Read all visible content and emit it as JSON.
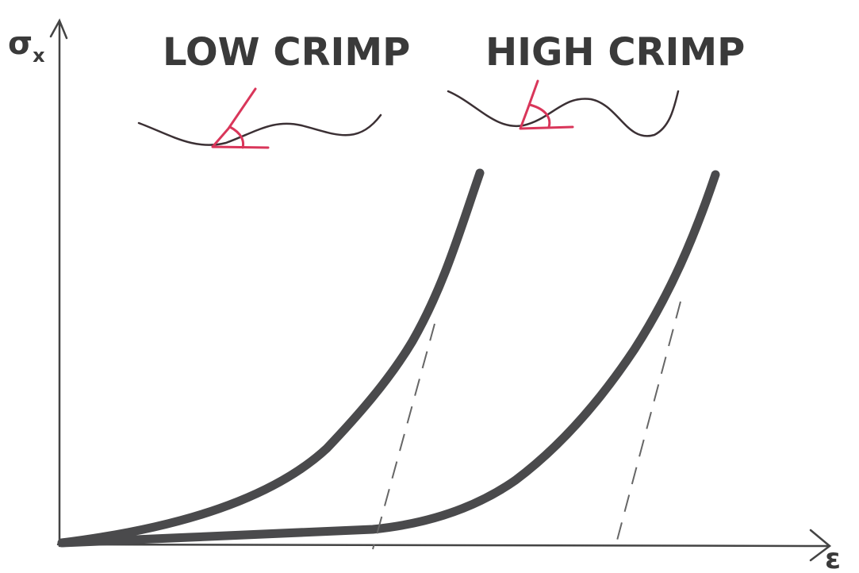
{
  "labels": {
    "low": "LOW CRIMP",
    "high": "HIGH CRIMP"
  },
  "y_axis": {
    "symbol": "σ",
    "subscript": "x"
  },
  "x_axis": {
    "symbol": "ε"
  }
}
